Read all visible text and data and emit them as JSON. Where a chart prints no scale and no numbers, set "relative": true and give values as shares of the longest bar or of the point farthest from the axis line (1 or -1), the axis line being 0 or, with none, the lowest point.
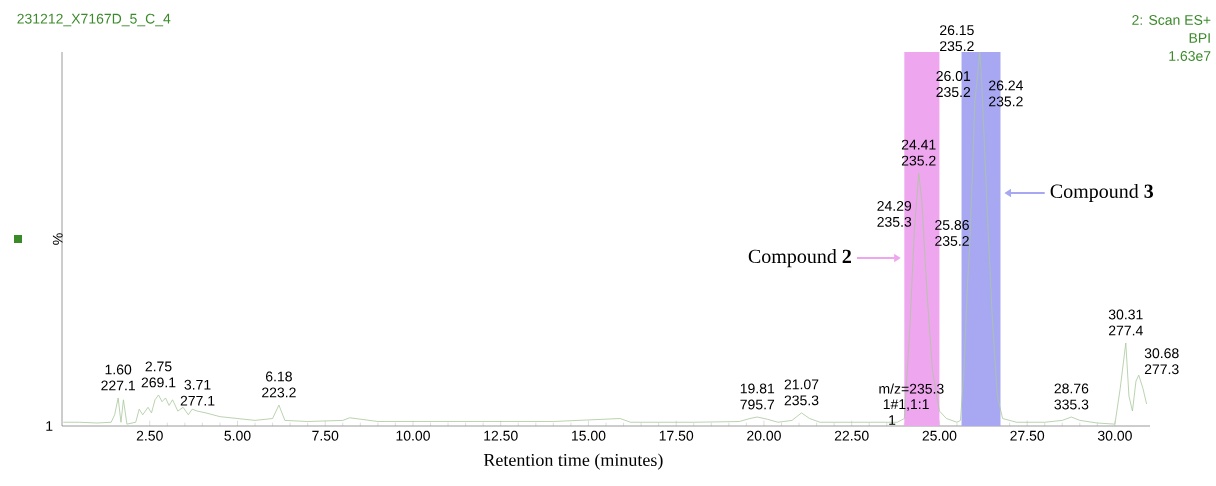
{
  "chart_data": {
    "type": "line",
    "relative": true,
    "title": "231212_X7167D_5_C_4",
    "xlabel": "Retention time (minutes)",
    "ylabel": "%",
    "xlim": [
      0,
      31
    ],
    "xticks": [
      {
        "value": 2.5,
        "label": "2.50"
      },
      {
        "value": 5,
        "label": "5.00"
      },
      {
        "value": 7.5,
        "label": "7.50"
      },
      {
        "value": 10,
        "label": "10.00"
      },
      {
        "value": 12.5,
        "label": "12.50"
      },
      {
        "value": 15,
        "label": "15.00"
      },
      {
        "value": 17.5,
        "label": "17.50"
      },
      {
        "value": 20,
        "label": "20.00"
      },
      {
        "value": 22.5,
        "label": "22.50"
      },
      {
        "value": 25,
        "label": "25.00"
      },
      {
        "value": 27.5,
        "label": "27.50"
      },
      {
        "value": 30,
        "label": "30.00"
      }
    ],
    "x": [
      0.05,
      0.5,
      1.0,
      1.4,
      1.5,
      1.6,
      1.68,
      1.75,
      1.85,
      2.1,
      2.2,
      2.3,
      2.45,
      2.55,
      2.65,
      2.75,
      2.85,
      2.95,
      3.05,
      3.15,
      3.3,
      3.45,
      3.6,
      3.71,
      3.85,
      4.1,
      4.5,
      5.0,
      5.5,
      6.0,
      6.18,
      6.35,
      7.0,
      8.0,
      8.2,
      9.0,
      10.0,
      12.0,
      14.0,
      15.9,
      16.2,
      18.0,
      19.3,
      19.6,
      19.81,
      20.1,
      20.4,
      20.8,
      21.07,
      21.3,
      21.6,
      23.0,
      23.8,
      24.0,
      24.15,
      24.29,
      24.35,
      24.41,
      24.5,
      24.65,
      24.8,
      25.0,
      25.2,
      25.5,
      25.6,
      25.7,
      25.8,
      25.86,
      25.95,
      26.01,
      26.1,
      26.15,
      26.2,
      26.24,
      26.35,
      26.5,
      26.65,
      26.8,
      27.2,
      28.0,
      28.5,
      28.76,
      29.0,
      29.5,
      30.0,
      30.15,
      30.31,
      30.4,
      30.5,
      30.6,
      30.68,
      30.8,
      30.9
    ],
    "series": [
      {
        "color": "#a8c89c",
        "values": [
          0.01,
          0.01,
          0.008,
          0.01,
          0.03,
          0.075,
          0.01,
          0.07,
          0.005,
          0.01,
          0.045,
          0.03,
          0.05,
          0.035,
          0.07,
          0.083,
          0.065,
          0.075,
          0.055,
          0.07,
          0.04,
          0.05,
          0.03,
          0.045,
          0.04,
          0.035,
          0.025,
          0.02,
          0.015,
          0.02,
          0.056,
          0.015,
          0.012,
          0.015,
          0.022,
          0.012,
          0.012,
          0.012,
          0.012,
          0.02,
          0.01,
          0.01,
          0.012,
          0.02,
          0.024,
          0.018,
          0.01,
          0.015,
          0.035,
          0.02,
          0.01,
          0.01,
          0.01,
          0.02,
          0.25,
          0.53,
          0.6,
          0.676,
          0.6,
          0.35,
          0.15,
          0.04,
          0.02,
          0.01,
          0.015,
          0.15,
          0.38,
          0.479,
          0.7,
          0.87,
          0.95,
          1.0,
          0.93,
          0.845,
          0.6,
          0.3,
          0.08,
          0.02,
          0.01,
          0.01,
          0.015,
          0.024,
          0.015,
          0.008,
          0.005,
          0.1,
          0.222,
          0.08,
          0.04,
          0.12,
          0.136,
          0.1,
          0.06
        ]
      }
    ],
    "bands": [
      {
        "axis": "x",
        "from": 24.0,
        "to": 25.0,
        "label": "Compound **2**",
        "color": "#eea6ee"
      },
      {
        "axis": "x",
        "from": 25.63,
        "to": 26.74,
        "label": "Compound **3**",
        "color": "#a8a8f2"
      }
    ],
    "annotations": [
      {
        "text": "1.60 227.1",
        "x": 1.6,
        "y": 0.075
      },
      {
        "text": "2.75 269.1",
        "x": 2.75,
        "y": 0.083
      },
      {
        "text": "3.71 277.1",
        "x": 3.71,
        "y": 0.045
      },
      {
        "text": "6.18 223.2",
        "x": 6.18,
        "y": 0.056
      },
      {
        "text": "19.81 795.7",
        "x": 19.81,
        "y": 0.024
      },
      {
        "text": "21.07 235.3",
        "x": 21.07,
        "y": 0.035
      },
      {
        "text": "24.29 235.3",
        "x": 24.29,
        "y": 0.53
      },
      {
        "text": "24.41 235.2",
        "x": 24.41,
        "y": 0.676
      },
      {
        "text": "25.86 235.2",
        "x": 25.86,
        "y": 0.479
      },
      {
        "text": "26.01 235.2",
        "x": 26.01,
        "y": 0.87
      },
      {
        "text": "26.15 235.2",
        "x": 26.15,
        "y": 1.0
      },
      {
        "text": "26.24 235.2",
        "x": 26.24,
        "y": 0.845
      },
      {
        "text": "28.76 335.3",
        "x": 28.76,
        "y": 0.024
      },
      {
        "text": "30.31 277.4",
        "x": 30.31,
        "y": 0.222
      },
      {
        "text": "30.68 277.3",
        "x": 30.68,
        "y": 0.136
      },
      "m/z=235.3",
      "1#1,1:1",
      "1",
      "1",
      "2: Scan ES+",
      "BPI",
      "1.63e7"
    ]
  }
}
